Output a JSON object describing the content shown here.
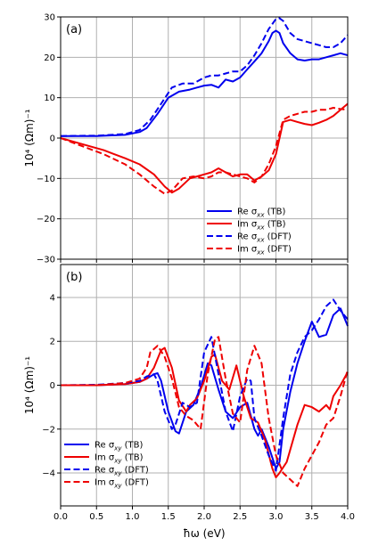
{
  "chart_data": [
    {
      "type": "line",
      "panel_label": "(a)",
      "ylabel": "10⁴ (Ωm)⁻¹",
      "xlim": [
        0,
        4
      ],
      "ylim": [
        -30,
        30
      ],
      "yticks": [
        "30",
        "20",
        "10",
        "0",
        "−10",
        "−20",
        "−30"
      ],
      "grid": true,
      "legend_position": "lower-right",
      "series": [
        {
          "name": "Re σxx (TB)",
          "base": "Re σ",
          "sub": "xx",
          "suffix": " (TB)",
          "color": "#0000ee",
          "dash": false,
          "x": [
            0,
            0.5,
            0.9,
            1.1,
            1.2,
            1.35,
            1.5,
            1.65,
            1.8,
            1.9,
            2.0,
            2.1,
            2.2,
            2.3,
            2.4,
            2.5,
            2.6,
            2.7,
            2.8,
            2.9,
            2.95,
            3.0,
            3.05,
            3.1,
            3.2,
            3.3,
            3.4,
            3.5,
            3.6,
            3.7,
            3.8,
            3.9,
            4.0
          ],
          "y": [
            0.5,
            0.5,
            0.8,
            1.5,
            2.5,
            6,
            10,
            11.5,
            12,
            12.5,
            13,
            13.2,
            12.5,
            14.5,
            14,
            15,
            17,
            19,
            21,
            24,
            26,
            26.6,
            26,
            23.5,
            21,
            19.5,
            19.2,
            19.5,
            19.5,
            20,
            20.5,
            21,
            20.5
          ]
        },
        {
          "name": "Im σxx (TB)",
          "base": "Im σ",
          "sub": "xx",
          "suffix": " (TB)",
          "color": "#ee0000",
          "dash": false,
          "x": [
            0,
            0.3,
            0.6,
            0.9,
            1.1,
            1.3,
            1.45,
            1.55,
            1.65,
            1.8,
            1.9,
            2.0,
            2.1,
            2.2,
            2.3,
            2.4,
            2.5,
            2.6,
            2.7,
            2.8,
            2.9,
            3.0,
            3.1,
            3.2,
            3.3,
            3.4,
            3.5,
            3.6,
            3.7,
            3.8,
            3.9,
            4.0
          ],
          "y": [
            0,
            -1.5,
            -3,
            -5,
            -6.5,
            -9,
            -12,
            -13.5,
            -12.5,
            -10,
            -9.5,
            -9,
            -8.5,
            -7.5,
            -8.5,
            -9.5,
            -9,
            -9,
            -10.5,
            -9.5,
            -8,
            -4,
            4,
            4.5,
            4,
            3.5,
            3.2,
            3.8,
            4.5,
            5.5,
            7,
            8.5
          ]
        },
        {
          "name": "Re σxx (DFT)",
          "base": "Re σ",
          "sub": "xx",
          "suffix": " (DFT)",
          "color": "#0000ee",
          "dash": true,
          "x": [
            0,
            0.5,
            0.9,
            1.1,
            1.25,
            1.4,
            1.55,
            1.7,
            1.85,
            2.0,
            2.1,
            2.2,
            2.3,
            2.4,
            2.5,
            2.6,
            2.7,
            2.8,
            2.9,
            3.0,
            3.05,
            3.1,
            3.2,
            3.3,
            3.4,
            3.5,
            3.6,
            3.7,
            3.8,
            3.9,
            4.0
          ],
          "y": [
            0.5,
            0.6,
            1,
            2,
            4.5,
            8.5,
            12.5,
            13.5,
            13.5,
            15,
            15.5,
            15.5,
            16,
            16.5,
            16.5,
            18,
            20.5,
            23.5,
            27,
            29.5,
            29.7,
            29,
            26,
            24.5,
            24,
            23.5,
            23,
            22.5,
            22.5,
            23.5,
            25.5
          ]
        },
        {
          "name": "Im σxx (DFT)",
          "base": "Im σ",
          "sub": "xx",
          "suffix": " (DFT)",
          "color": "#ee0000",
          "dash": true,
          "x": [
            0,
            0.3,
            0.6,
            0.9,
            1.1,
            1.3,
            1.45,
            1.55,
            1.7,
            1.85,
            2.0,
            2.1,
            2.2,
            2.3,
            2.4,
            2.5,
            2.6,
            2.7,
            2.8,
            2.9,
            3.0,
            3.1,
            3.2,
            3.3,
            3.4,
            3.5,
            3.6,
            3.7,
            3.8,
            3.9,
            4.0
          ],
          "y": [
            0,
            -2,
            -4,
            -6.5,
            -9,
            -12,
            -13.8,
            -13,
            -10,
            -9.5,
            -10,
            -9.5,
            -8.5,
            -8.5,
            -9,
            -9.5,
            -10,
            -11,
            -9.5,
            -6.5,
            -2,
            4.5,
            5.5,
            6,
            6.5,
            6.5,
            7,
            7,
            7.5,
            7.2,
            7
          ]
        }
      ]
    },
    {
      "type": "line",
      "panel_label": "(b)",
      "ylabel": "10⁴ (Ωm)⁻¹",
      "xlabel": "ħω (eV)",
      "xlim": [
        0,
        4
      ],
      "ylim": [
        -5.5,
        5.5
      ],
      "xticks": [
        "0.0",
        "0.5",
        "1.0",
        "1.5",
        "2.0",
        "2.5",
        "3.0",
        "3.5",
        "4.0"
      ],
      "yticks": [
        "4",
        "2",
        "0",
        "−2",
        "−4"
      ],
      "grid": true,
      "legend_position": "lower-left",
      "series": [
        {
          "name": "Re σxy (TB)",
          "base": "Re σ",
          "sub": "xy",
          "suffix": " (TB)",
          "color": "#0000ee",
          "dash": false,
          "x": [
            0,
            0.5,
            0.9,
            1.1,
            1.2,
            1.3,
            1.35,
            1.4,
            1.5,
            1.6,
            1.65,
            1.75,
            1.85,
            1.95,
            2.05,
            2.1,
            2.2,
            2.3,
            2.4,
            2.5,
            2.6,
            2.7,
            2.75,
            2.8,
            2.9,
            3.0,
            3.05,
            3.1,
            3.2,
            3.3,
            3.4,
            3.5,
            3.6,
            3.7,
            3.8,
            3.9,
            4.0
          ],
          "y": [
            0,
            0,
            0.05,
            0.15,
            0.3,
            0.5,
            0.55,
            0.2,
            -1.2,
            -2.1,
            -2.2,
            -1.2,
            -0.9,
            -0.1,
            1,
            0.9,
            -0.2,
            -1.2,
            -1.5,
            -1,
            -0.8,
            -2,
            -2.3,
            -2,
            -2.8,
            -3.8,
            -3.5,
            -2,
            -0.3,
            1,
            2,
            2.9,
            2.2,
            2.3,
            3.2,
            3.5,
            2.7
          ]
        },
        {
          "name": "Im σxy (TB)",
          "base": "Im σ",
          "sub": "xy",
          "suffix": " (TB)",
          "color": "#ee0000",
          "dash": false,
          "x": [
            0,
            0.5,
            0.9,
            1.1,
            1.2,
            1.3,
            1.4,
            1.45,
            1.55,
            1.65,
            1.75,
            1.8,
            1.9,
            2.0,
            2.1,
            2.15,
            2.25,
            2.35,
            2.45,
            2.55,
            2.65,
            2.75,
            2.85,
            2.95,
            3.0,
            3.05,
            3.15,
            3.3,
            3.4,
            3.5,
            3.6,
            3.7,
            3.75,
            3.8,
            3.9,
            4.0
          ],
          "y": [
            0,
            0,
            0.05,
            0.15,
            0.3,
            0.8,
            1.6,
            1.7,
            0.8,
            -0.7,
            -1.2,
            -0.9,
            -0.6,
            0.2,
            1.3,
            1.4,
            0.2,
            -0.2,
            0.9,
            -0.5,
            -1.5,
            -1.7,
            -2.5,
            -3.8,
            -4.2,
            -4.0,
            -3.5,
            -1.8,
            -0.9,
            -1,
            -1.2,
            -0.9,
            -1.1,
            -0.5,
            0,
            0.6
          ]
        },
        {
          "name": "Re σxy (DFT)",
          "base": "Re σ",
          "sub": "xy",
          "suffix": " (DFT)",
          "color": "#0000ee",
          "dash": true,
          "x": [
            0,
            0.5,
            0.9,
            1.1,
            1.2,
            1.3,
            1.35,
            1.45,
            1.55,
            1.6,
            1.7,
            1.8,
            1.9,
            2.0,
            2.1,
            2.2,
            2.3,
            2.4,
            2.5,
            2.6,
            2.65,
            2.7,
            2.8,
            2.9,
            3.0,
            3.1,
            3.2,
            3.3,
            3.4,
            3.5,
            3.6,
            3.7,
            3.8,
            3.9,
            4.0
          ],
          "y": [
            0,
            0.02,
            0.1,
            0.2,
            0.4,
            0.5,
            0.2,
            -1.2,
            -2,
            -1.8,
            -0.8,
            -1,
            -0.8,
            1.5,
            2.2,
            0.5,
            -1.2,
            -2.1,
            -0.5,
            0.3,
            0.2,
            -1.5,
            -2.3,
            -3.2,
            -3.9,
            -1.5,
            0.5,
            1.5,
            2.2,
            2.5,
            3,
            3.6,
            3.9,
            3.4,
            3.0
          ]
        },
        {
          "name": "Im σxy (DFT)",
          "base": "Im σ",
          "sub": "xy",
          "suffix": " (DFT)",
          "color": "#ee0000",
          "dash": true,
          "x": [
            0,
            0.5,
            0.9,
            1.1,
            1.2,
            1.25,
            1.35,
            1.45,
            1.55,
            1.65,
            1.75,
            1.85,
            1.95,
            2.05,
            2.15,
            2.2,
            2.3,
            2.4,
            2.5,
            2.6,
            2.7,
            2.8,
            2.9,
            3.0,
            3.1,
            3.2,
            3.3,
            3.4,
            3.5,
            3.6,
            3.7,
            3.8,
            3.9,
            4.0
          ],
          "y": [
            0,
            0,
            0.1,
            0.3,
            0.8,
            1.5,
            1.8,
            1.3,
            0.3,
            -1,
            -1.4,
            -1.6,
            -2.0,
            0.5,
            2.1,
            2.2,
            0.3,
            -1.3,
            -1.7,
            0.7,
            1.8,
            1,
            -1.5,
            -3.2,
            -4.0,
            -4.3,
            -4.6,
            -3.8,
            -3.2,
            -2.6,
            -1.8,
            -1.5,
            -0.5,
            0.7
          ]
        }
      ]
    }
  ]
}
